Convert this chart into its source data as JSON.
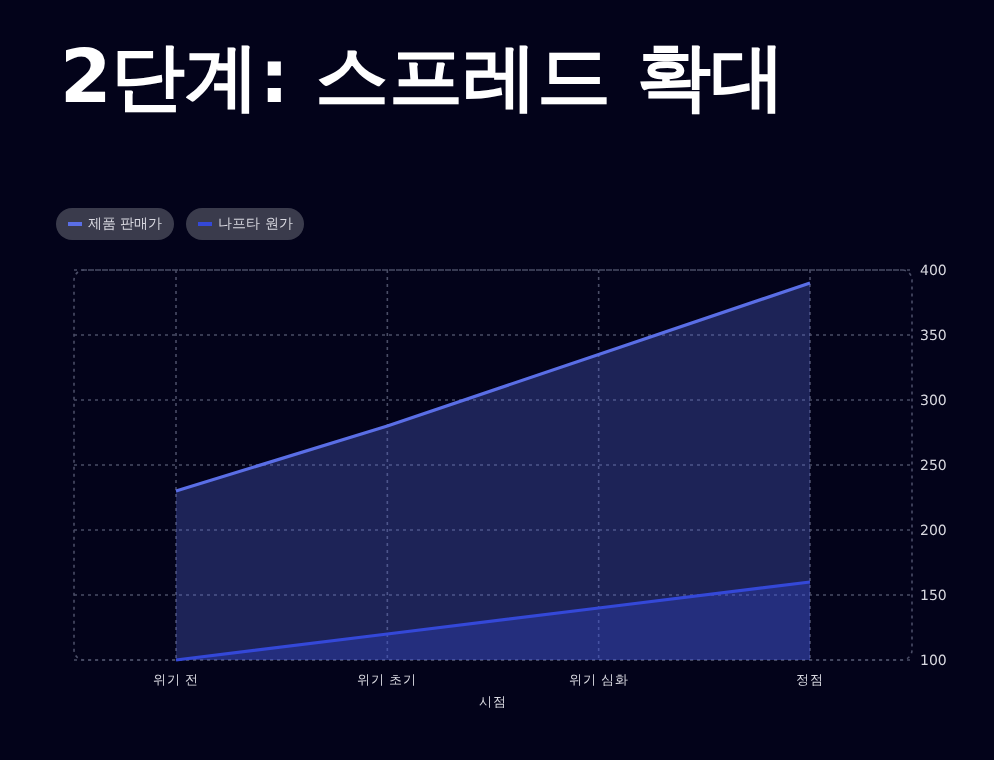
{
  "chart_data": {
    "type": "area",
    "title": "2단계: 스프레드 확대",
    "xlabel": "시점",
    "categories": [
      "위기 전",
      "위기 초기",
      "위기 심화",
      "정점"
    ],
    "series": [
      {
        "name": "제품 판매가",
        "color": "#5a6ee6",
        "values": [
          230,
          280,
          335,
          390
        ]
      },
      {
        "name": "나프타 원가",
        "color": "#3448d8",
        "values": [
          100,
          120,
          140,
          160
        ]
      }
    ],
    "ylim": [
      100,
      400
    ],
    "yticks": [
      100,
      150,
      200,
      250,
      300,
      350,
      400
    ],
    "grid": true,
    "legend": "top left"
  }
}
